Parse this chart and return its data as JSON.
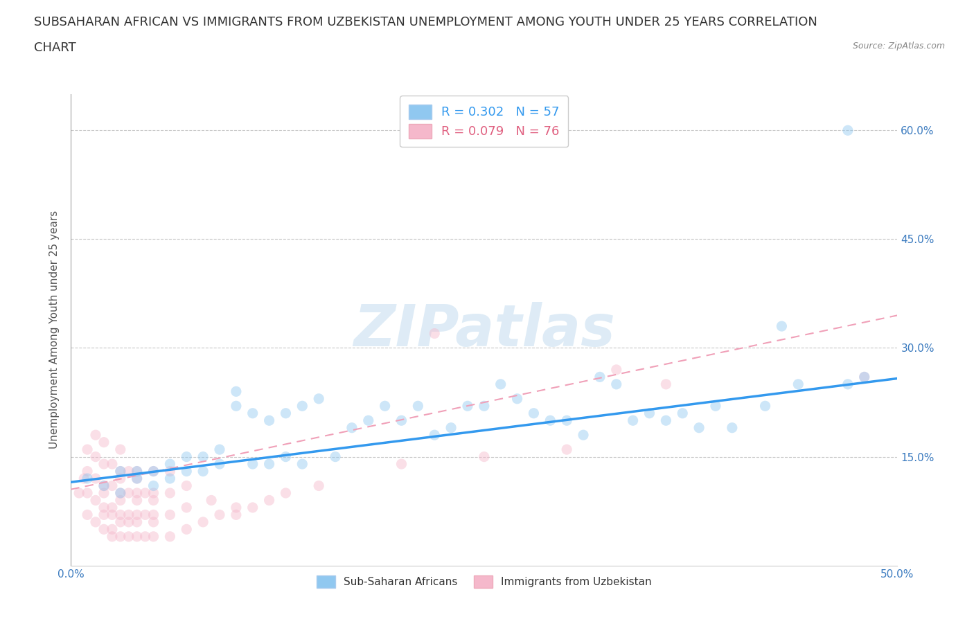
{
  "title_line1": "SUBSAHARAN AFRICAN VS IMMIGRANTS FROM UZBEKISTAN UNEMPLOYMENT AMONG YOUTH UNDER 25 YEARS CORRELATION",
  "title_line2": "CHART",
  "source_text": "Source: ZipAtlas.com",
  "ylabel": "Unemployment Among Youth under 25 years",
  "xlim": [
    0.0,
    0.5
  ],
  "ylim": [
    0.0,
    0.65
  ],
  "xticks": [
    0.0,
    0.1,
    0.2,
    0.3,
    0.4,
    0.5
  ],
  "ytick_positions": [
    0.15,
    0.3,
    0.45,
    0.6
  ],
  "ytick_labels": [
    "15.0%",
    "30.0%",
    "45.0%",
    "60.0%"
  ],
  "background_color": "#ffffff",
  "blue_color": "#90c8f0",
  "pink_color": "#f5b8cb",
  "blue_line_color": "#3399ee",
  "pink_line_color": "#f0a0b8",
  "legend_blue_label": "R = 0.302   N = 57",
  "legend_pink_label": "R = 0.079   N = 76",
  "legend_label_blue": "Sub-Saharan Africans",
  "legend_label_pink": "Immigrants from Uzbekistan",
  "blue_scatter_x": [
    0.01,
    0.02,
    0.03,
    0.03,
    0.04,
    0.04,
    0.05,
    0.05,
    0.06,
    0.06,
    0.07,
    0.07,
    0.08,
    0.08,
    0.09,
    0.09,
    0.1,
    0.1,
    0.11,
    0.11,
    0.12,
    0.12,
    0.13,
    0.13,
    0.14,
    0.14,
    0.15,
    0.16,
    0.17,
    0.18,
    0.19,
    0.2,
    0.21,
    0.22,
    0.23,
    0.24,
    0.25,
    0.26,
    0.27,
    0.28,
    0.29,
    0.3,
    0.31,
    0.32,
    0.33,
    0.34,
    0.35,
    0.36,
    0.37,
    0.38,
    0.39,
    0.4,
    0.42,
    0.43,
    0.44,
    0.47,
    0.48
  ],
  "blue_scatter_y": [
    0.12,
    0.11,
    0.1,
    0.13,
    0.12,
    0.13,
    0.11,
    0.13,
    0.12,
    0.14,
    0.13,
    0.15,
    0.13,
    0.15,
    0.14,
    0.16,
    0.22,
    0.24,
    0.14,
    0.21,
    0.14,
    0.2,
    0.15,
    0.21,
    0.22,
    0.14,
    0.23,
    0.15,
    0.19,
    0.2,
    0.22,
    0.2,
    0.22,
    0.18,
    0.19,
    0.22,
    0.22,
    0.25,
    0.23,
    0.21,
    0.2,
    0.2,
    0.18,
    0.26,
    0.25,
    0.2,
    0.21,
    0.2,
    0.21,
    0.19,
    0.22,
    0.19,
    0.22,
    0.33,
    0.25,
    0.25,
    0.26
  ],
  "blue_outlier_x": [
    0.47
  ],
  "blue_outlier_y": [
    0.6
  ],
  "pink_scatter_x": [
    0.005,
    0.008,
    0.01,
    0.01,
    0.01,
    0.01,
    0.015,
    0.015,
    0.015,
    0.015,
    0.015,
    0.02,
    0.02,
    0.02,
    0.02,
    0.02,
    0.02,
    0.02,
    0.025,
    0.025,
    0.025,
    0.025,
    0.025,
    0.025,
    0.03,
    0.03,
    0.03,
    0.03,
    0.03,
    0.03,
    0.03,
    0.03,
    0.035,
    0.035,
    0.035,
    0.035,
    0.035,
    0.04,
    0.04,
    0.04,
    0.04,
    0.04,
    0.04,
    0.04,
    0.045,
    0.045,
    0.045,
    0.05,
    0.05,
    0.05,
    0.05,
    0.05,
    0.05,
    0.06,
    0.06,
    0.06,
    0.06,
    0.07,
    0.07,
    0.07,
    0.08,
    0.085,
    0.09,
    0.1,
    0.1,
    0.11,
    0.12,
    0.13,
    0.15,
    0.2,
    0.22,
    0.25,
    0.3,
    0.33,
    0.36,
    0.48
  ],
  "pink_scatter_y": [
    0.1,
    0.12,
    0.07,
    0.1,
    0.13,
    0.16,
    0.06,
    0.09,
    0.12,
    0.15,
    0.18,
    0.05,
    0.08,
    0.11,
    0.14,
    0.17,
    0.1,
    0.07,
    0.05,
    0.08,
    0.11,
    0.14,
    0.07,
    0.04,
    0.04,
    0.07,
    0.1,
    0.13,
    0.16,
    0.06,
    0.09,
    0.12,
    0.04,
    0.07,
    0.1,
    0.13,
    0.06,
    0.04,
    0.07,
    0.1,
    0.13,
    0.06,
    0.09,
    0.12,
    0.04,
    0.07,
    0.1,
    0.04,
    0.07,
    0.1,
    0.13,
    0.06,
    0.09,
    0.04,
    0.07,
    0.1,
    0.13,
    0.05,
    0.08,
    0.11,
    0.06,
    0.09,
    0.07,
    0.07,
    0.08,
    0.08,
    0.09,
    0.1,
    0.11,
    0.14,
    0.32,
    0.15,
    0.16,
    0.27,
    0.25,
    0.26
  ],
  "blue_trend_x": [
    0.0,
    0.5
  ],
  "blue_trend_y": [
    0.115,
    0.258
  ],
  "pink_trend_x": [
    0.0,
    0.5
  ],
  "pink_trend_y": [
    0.105,
    0.345
  ],
  "watermark": "ZIPatlas",
  "title_fontsize": 13,
  "axis_label_fontsize": 11,
  "tick_fontsize": 11,
  "scatter_size": 120,
  "scatter_alpha": 0.45
}
